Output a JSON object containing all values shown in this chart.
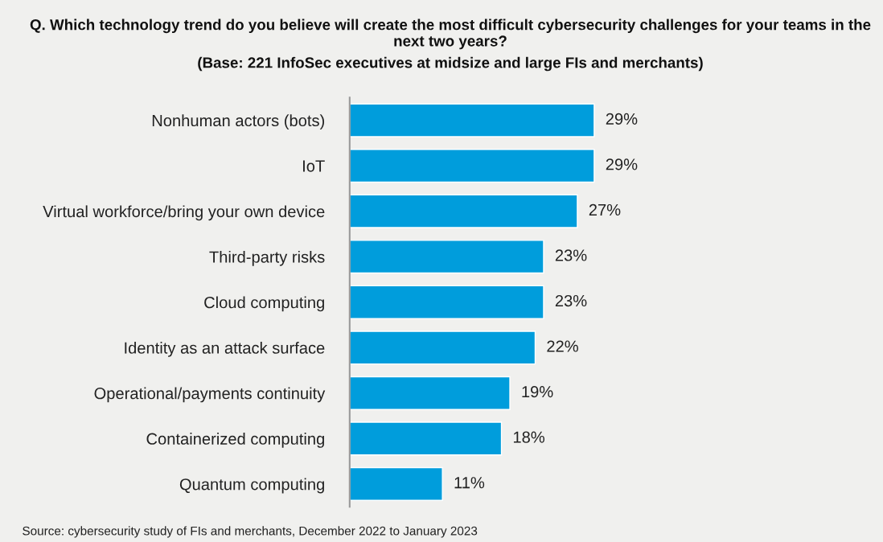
{
  "chart_data": {
    "type": "bar",
    "orientation": "horizontal",
    "title": "Q. Which technology trend do you believe will create the most difficult cybersecurity challenges for your teams in the next two years?",
    "subtitle": "(Base: 221 InfoSec executives at midsize and large FIs and merchants)",
    "categories": [
      "Nonhuman actors (bots)",
      "IoT",
      "Virtual workforce/bring your own device",
      "Third-party risks",
      "Cloud computing",
      "Identity as an attack surface",
      "Operational/payments continuity",
      "Containerized computing",
      "Quantum computing"
    ],
    "values": [
      29,
      29,
      27,
      23,
      23,
      22,
      19,
      18,
      11
    ],
    "value_labels": [
      "29%",
      "29%",
      "27%",
      "23%",
      "23%",
      "22%",
      "19%",
      "18%",
      "11%"
    ],
    "color": "#009ddc",
    "grid": false,
    "legend": false,
    "tick_labels": "y",
    "annotations": [
      "Source: cybersecurity study of FIs and merchants, December 2022 to January 2023"
    ]
  }
}
